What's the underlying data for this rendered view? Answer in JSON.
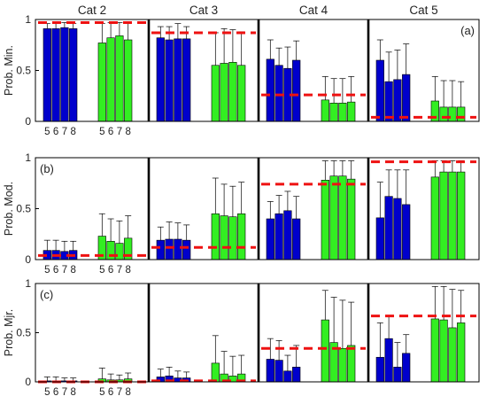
{
  "category_headers": [
    "Cat 2",
    "Cat 3",
    "Cat 4",
    "Cat 5"
  ],
  "bar_labels": [
    "5",
    "6",
    "7",
    "8"
  ],
  "colors": {
    "blue": "#0000cc",
    "green": "#33ee22",
    "red": "#ee1111",
    "border": "#000000"
  },
  "chart_data": [
    {
      "type": "bar",
      "panel_label": "(a)",
      "ylabel": "Prob. Min.",
      "ylim": [
        0,
        1
      ],
      "yticks": [
        "0",
        "0.5",
        "1"
      ],
      "show_bar_labels": true,
      "categories": [
        "Cat 2",
        "Cat 3",
        "Cat 4",
        "Cat 5"
      ],
      "series": [
        {
          "values": [
            [
              0.91,
              0.91,
              0.92,
              0.91
            ],
            [
              0.82,
              0.8,
              0.81,
              0.81
            ],
            [
              0.61,
              0.55,
              0.52,
              0.6
            ],
            [
              0.6,
              0.39,
              0.41,
              0.46
            ]
          ],
          "errors": [
            [
              0.96,
              0.96,
              0.97,
              0.96
            ],
            [
              0.93,
              0.93,
              0.96,
              0.93
            ],
            [
              0.8,
              0.72,
              0.73,
              0.79
            ],
            [
              0.8,
              0.68,
              0.7,
              0.76
            ]
          ]
        },
        {
          "values": [
            [
              0.77,
              0.82,
              0.84,
              0.8
            ],
            [
              0.55,
              0.57,
              0.58,
              0.55
            ],
            [
              0.21,
              0.18,
              0.18,
              0.19
            ],
            [
              0.2,
              0.14,
              0.14,
              0.14
            ]
          ],
          "errors": [
            [
              0.96,
              0.97,
              0.97,
              0.96
            ],
            [
              0.87,
              0.91,
              0.9,
              0.88
            ],
            [
              0.44,
              0.42,
              0.42,
              0.44
            ],
            [
              0.44,
              0.4,
              0.4,
              0.39
            ]
          ]
        }
      ],
      "reference_lines": [
        0.97,
        0.87,
        0.26,
        0.04
      ]
    },
    {
      "type": "bar",
      "panel_label": "(b)",
      "ylabel": "Prob. Mod.",
      "ylim": [
        0,
        1
      ],
      "yticks": [
        "0",
        "0.5",
        "1"
      ],
      "show_bar_labels": true,
      "categories": [
        "Cat 2",
        "Cat 3",
        "Cat 4",
        "Cat 5"
      ],
      "series": [
        {
          "values": [
            [
              0.09,
              0.09,
              0.08,
              0.09
            ],
            [
              0.19,
              0.2,
              0.2,
              0.19
            ],
            [
              0.4,
              0.45,
              0.48,
              0.4
            ],
            [
              0.41,
              0.62,
              0.6,
              0.54
            ]
          ],
          "errors": [
            [
              0.19,
              0.19,
              0.18,
              0.18
            ],
            [
              0.32,
              0.37,
              0.36,
              0.34
            ],
            [
              0.57,
              0.63,
              0.67,
              0.62
            ],
            [
              0.76,
              0.88,
              0.88,
              0.88
            ]
          ]
        },
        {
          "values": [
            [
              0.23,
              0.18,
              0.16,
              0.21
            ],
            [
              0.45,
              0.43,
              0.42,
              0.45
            ],
            [
              0.78,
              0.82,
              0.82,
              0.79
            ],
            [
              0.81,
              0.86,
              0.86,
              0.86
            ]
          ],
          "errors": [
            [
              0.45,
              0.4,
              0.38,
              0.43
            ],
            [
              0.8,
              0.74,
              0.72,
              0.76
            ],
            [
              0.97,
              0.97,
              0.97,
              0.97
            ],
            [
              0.97,
              0.97,
              0.97,
              0.97
            ]
          ]
        }
      ],
      "reference_lines": [
        0.04,
        0.12,
        0.74,
        0.96
      ]
    },
    {
      "type": "bar",
      "panel_label": "(c)",
      "ylabel": "Prob. Mjr.",
      "ylim": [
        0,
        1
      ],
      "yticks": [
        "0",
        "0.5",
        "1"
      ],
      "show_bar_labels": true,
      "categories": [
        "Cat 2",
        "Cat 3",
        "Cat 4",
        "Cat 5"
      ],
      "series": [
        {
          "values": [
            [
              0.01,
              0.01,
              0.01,
              0.01
            ],
            [
              0.05,
              0.06,
              0.04,
              0.04
            ],
            [
              0.23,
              0.22,
              0.11,
              0.15
            ],
            [
              0.25,
              0.44,
              0.15,
              0.29
            ]
          ],
          "errors": [
            [
              0.05,
              0.05,
              0.04,
              0.04
            ],
            [
              0.13,
              0.15,
              0.11,
              0.1
            ],
            [
              0.44,
              0.42,
              0.27,
              0.37
            ],
            [
              0.6,
              0.67,
              0.4,
              0.48
            ]
          ]
        },
        {
          "values": [
            [
              0.03,
              0.02,
              0.02,
              0.03
            ],
            [
              0.19,
              0.08,
              0.06,
              0.08
            ],
            [
              0.63,
              0.4,
              0.34,
              0.37
            ],
            [
              0.64,
              0.63,
              0.55,
              0.6
            ]
          ],
          "errors": [
            [
              0.14,
              0.08,
              0.07,
              0.09
            ],
            [
              0.47,
              0.31,
              0.26,
              0.27
            ],
            [
              0.93,
              0.86,
              0.83,
              0.81
            ],
            [
              0.97,
              0.97,
              0.94,
              0.93
            ]
          ]
        }
      ],
      "reference_lines": [
        0.0,
        0.01,
        0.34,
        0.67
      ]
    }
  ]
}
